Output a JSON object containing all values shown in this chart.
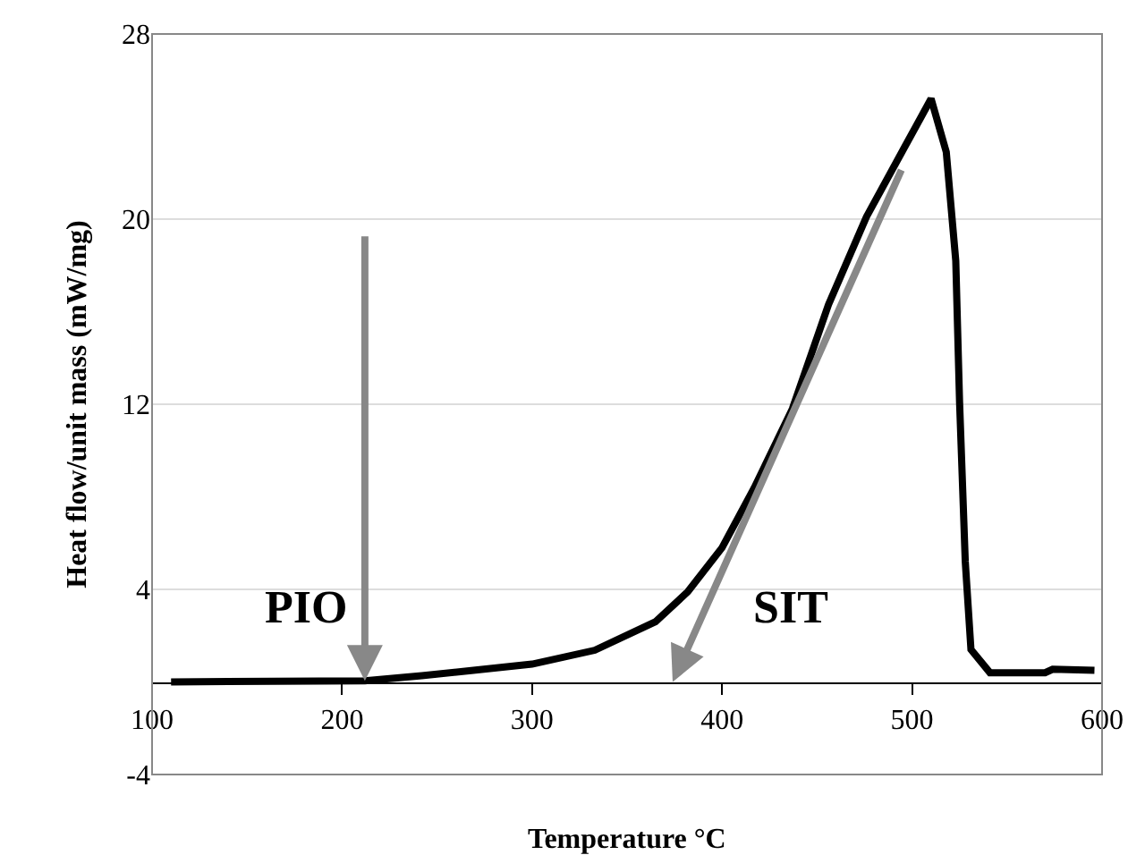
{
  "chart_data": {
    "type": "line",
    "xlabel": "Temperature °C",
    "ylabel": "Heat flow/unit mass (mW/mg)",
    "x": [
      110,
      212,
      242,
      268,
      300,
      333,
      365,
      382,
      400,
      417,
      437,
      456,
      476,
      496,
      510,
      518,
      523,
      525,
      528,
      531,
      541,
      570,
      574,
      596
    ],
    "series": [
      {
        "color": "#000000",
        "values": [
          0,
          0.05,
          0.27,
          0.49,
          0.77,
          1.37,
          2.6,
          3.9,
          5.8,
          8.4,
          11.8,
          16.3,
          20.1,
          23.1,
          25.2,
          22.9,
          18.2,
          12.1,
          5.2,
          1.4,
          0.4,
          0.4,
          0.55,
          0.5
        ]
      }
    ],
    "xlim": [
      100,
      600
    ],
    "xticks": [
      100,
      200,
      300,
      400,
      500,
      600
    ],
    "ylim": [
      -4,
      28
    ],
    "yticks": [
      -4,
      4,
      12,
      20,
      28
    ],
    "grid": "y",
    "marker": "none",
    "line_style": "solid",
    "annotations": [
      {
        "text": "PIO",
        "x": 212,
        "y": 0.05
      },
      "SIT"
    ]
  }
}
